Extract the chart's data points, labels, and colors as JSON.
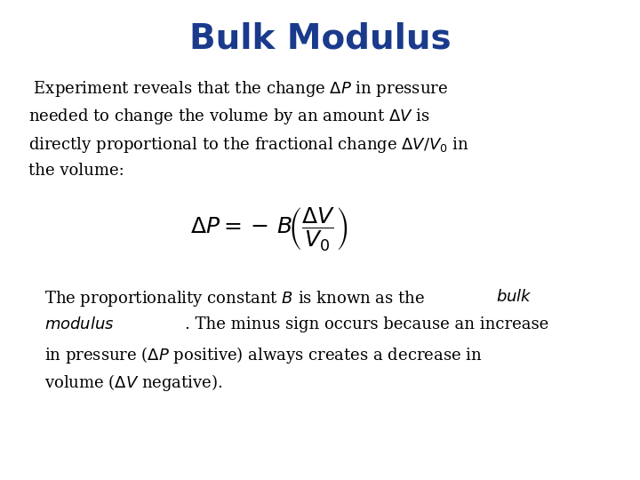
{
  "title": "Bulk Modulus",
  "title_color": "#1a3a8c",
  "title_fontsize": 28,
  "background_color": "#ffffff",
  "text_color": "#000000",
  "text_fontsize": 13,
  "eq_fontsize": 18,
  "fig_width": 7.2,
  "fig_height": 5.4,
  "dpi": 100
}
